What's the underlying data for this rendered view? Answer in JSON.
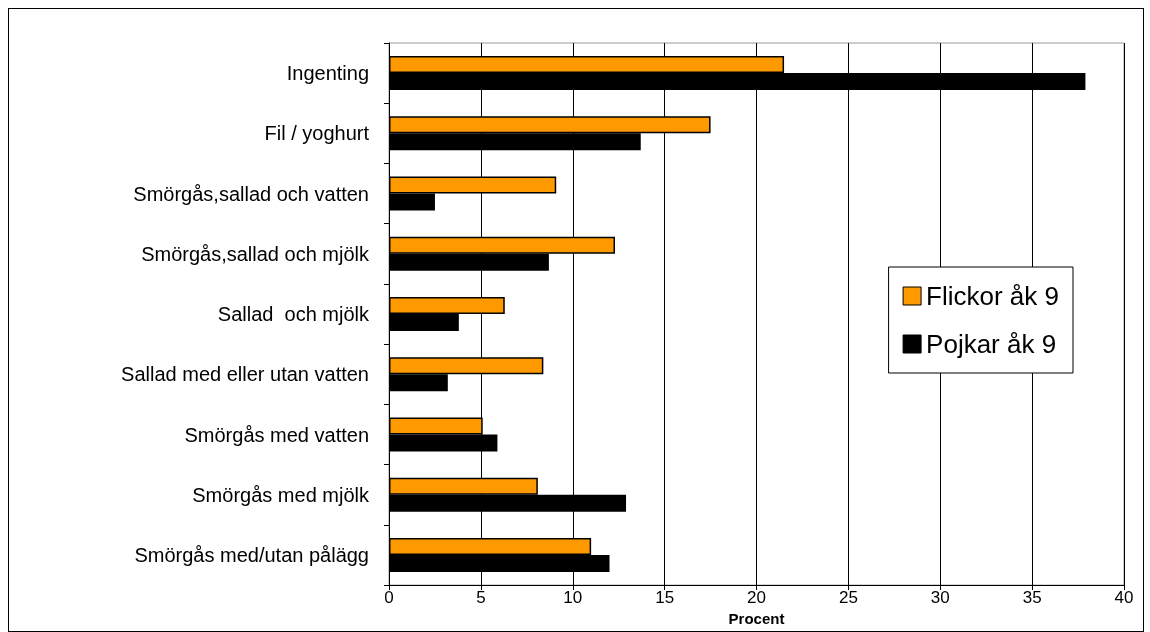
{
  "chart_data": {
    "type": "bar",
    "orientation": "horizontal",
    "xlabel": "Procent",
    "categories": [
      "Ingenting",
      "Fil / yoghurt",
      "Smörgås,sallad och vatten",
      "Smörgås,sallad och mjölk",
      "Sallad  och mjölk",
      "Sallad med eller utan vatten",
      "Smörgås med vatten",
      "Smörgås med mjölk",
      "Smörgås med/utan pålägg"
    ],
    "series": [
      {
        "name": "Flickor åk 9",
        "color": "#ff9900",
        "values": [
          21.5,
          17.5,
          9.1,
          12.3,
          6.3,
          8.4,
          5.1,
          8.1,
          11.0
        ]
      },
      {
        "name": "Pojkar åk 9",
        "color": "#000000",
        "values": [
          37.9,
          13.7,
          2.5,
          8.7,
          3.8,
          3.2,
          5.9,
          12.9,
          12.0
        ]
      }
    ],
    "xlim": [
      0,
      40
    ],
    "xticks": [
      0,
      5,
      10,
      15,
      20,
      25,
      30,
      35,
      40
    ],
    "grid": "x",
    "legend": "right"
  }
}
